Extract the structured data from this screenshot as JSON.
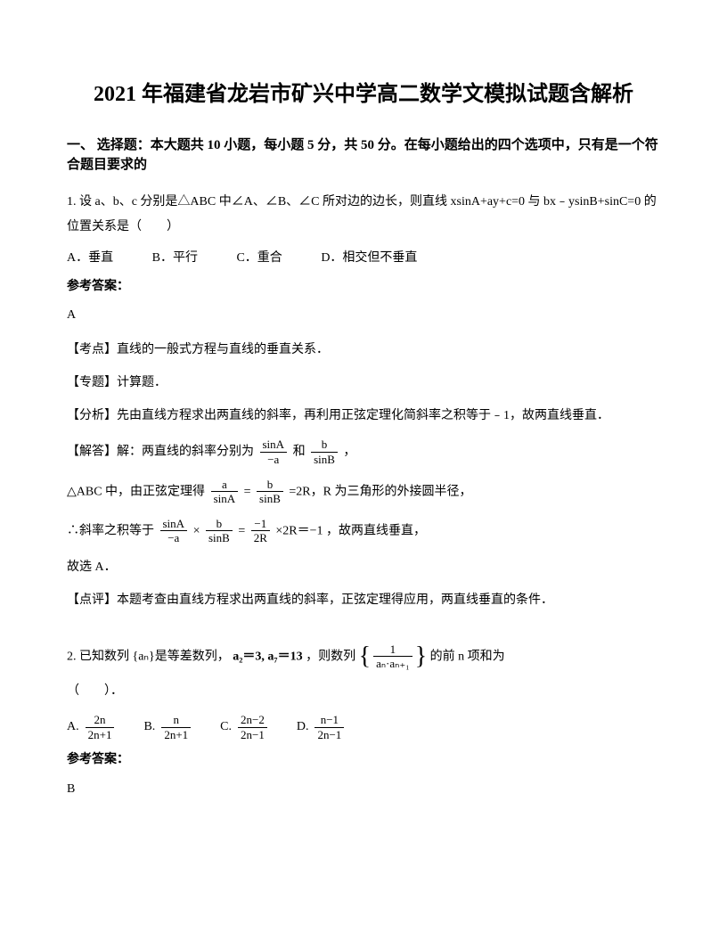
{
  "title": "2021 年福建省龙岩市矿兴中学高二数学文模拟试题含解析",
  "section_header": "一、 选择题：本大题共 10 小题，每小题 5 分，共 50 分。在每小题给出的四个选项中，只有是一个符合题目要求的",
  "q1": {
    "text": "1. 设 a、b、c 分别是△ABC 中∠A、∠B、∠C 所对边的边长，则直线 xsinA+ay+c=0 与 bx﹣ysinB+sinC=0 的位置关系是（　　）",
    "options": {
      "a": "A．垂直",
      "b": "B．平行",
      "c": "C．重合",
      "d": "D．相交但不垂直"
    },
    "answer_label": "参考答案：",
    "answer": "A",
    "point": "【考点】直线的一般式方程与直线的垂直关系．",
    "topic": "【专题】计算题．",
    "analysis_label": "【分析】先由直线方程求出两直线的斜率，再利用正弦定理化简斜率之积等于﹣1，故两直线垂直．",
    "solve_prefix": "【解答】解：两直线的斜率分别为",
    "solve_mid": "和",
    "solve_suffix": "，",
    "abc_prefix": "△ABC 中，由正弦定理得",
    "abc_suffix": "=2R，R 为三角形的外接圆半径，",
    "slope_prefix": "∴斜率之积等于",
    "slope_suffix": "，故两直线垂直，",
    "conclusion": "故选 A．",
    "review": "【点评】本题考查由直线方程求出两直线的斜率，正弦定理得应用，两直线垂直的条件．"
  },
  "q2": {
    "prefix": "2. 已知数列 {aₙ}是等差数列，",
    "condition": "a₂＝3, a₇＝13",
    "mid": "，则数列",
    "suffix": "的前 n 项和为",
    "paren": "（　　）．",
    "options": {
      "a_label": "A.",
      "a_num": "2n",
      "a_den": "2n+1",
      "b_label": "B.",
      "b_num": "n",
      "b_den": "2n+1",
      "c_label": "C.",
      "c_num": "2n−2",
      "c_den": "2n−1",
      "d_label": "D.",
      "d_num": "n−1",
      "d_den": "2n−1"
    },
    "answer_label": "参考答案：",
    "answer": "B",
    "seq_num": "1",
    "seq_den": "aₙ·aₙ₊₁"
  },
  "formulas": {
    "f1_num": "sinA",
    "f1_den": "−a",
    "f2_num": "b",
    "f2_den": "sinB",
    "f3_left_num": "a",
    "f3_left_den": "sinA",
    "f3_right_num": "b",
    "f3_right_den": "sinB",
    "f4_a_num": "sinA",
    "f4_a_den": "−a",
    "f4_b_num": "b",
    "f4_b_den": "sinB",
    "f4_c_num": "−1",
    "f4_c_den": "2R",
    "f4_result": "×2R＝−1"
  }
}
